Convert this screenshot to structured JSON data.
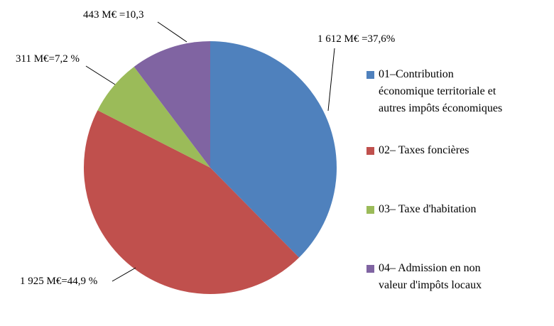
{
  "chart_data": {
    "type": "pie",
    "title": "",
    "start_angle_deg": 0,
    "direction": "clockwise",
    "legend_position": "right",
    "slices": [
      {
        "label": "01–Contribution\néconomique territoriale et\nautres impôts économiques",
        "value_meur": 1612,
        "pct": 37.6,
        "value_label": "1 612 M€ =37,6%",
        "color": "#4F81BD"
      },
      {
        "label": "02– Taxes foncières",
        "value_meur": 1925,
        "pct": 44.9,
        "value_label": "1 925 M€=44,9 %",
        "color": "#C0504D"
      },
      {
        "label": "03– Taxe d'habitation",
        "value_meur": 311,
        "pct": 7.2,
        "value_label": "311 M€=7,2 %",
        "color": "#9BBB59"
      },
      {
        "label": "04– Admission en non\nvaleur d'impôts locaux",
        "value_meur": 443,
        "pct": 10.3,
        "value_label": "443 M€ =10,3",
        "color": "#8064A2"
      }
    ]
  }
}
